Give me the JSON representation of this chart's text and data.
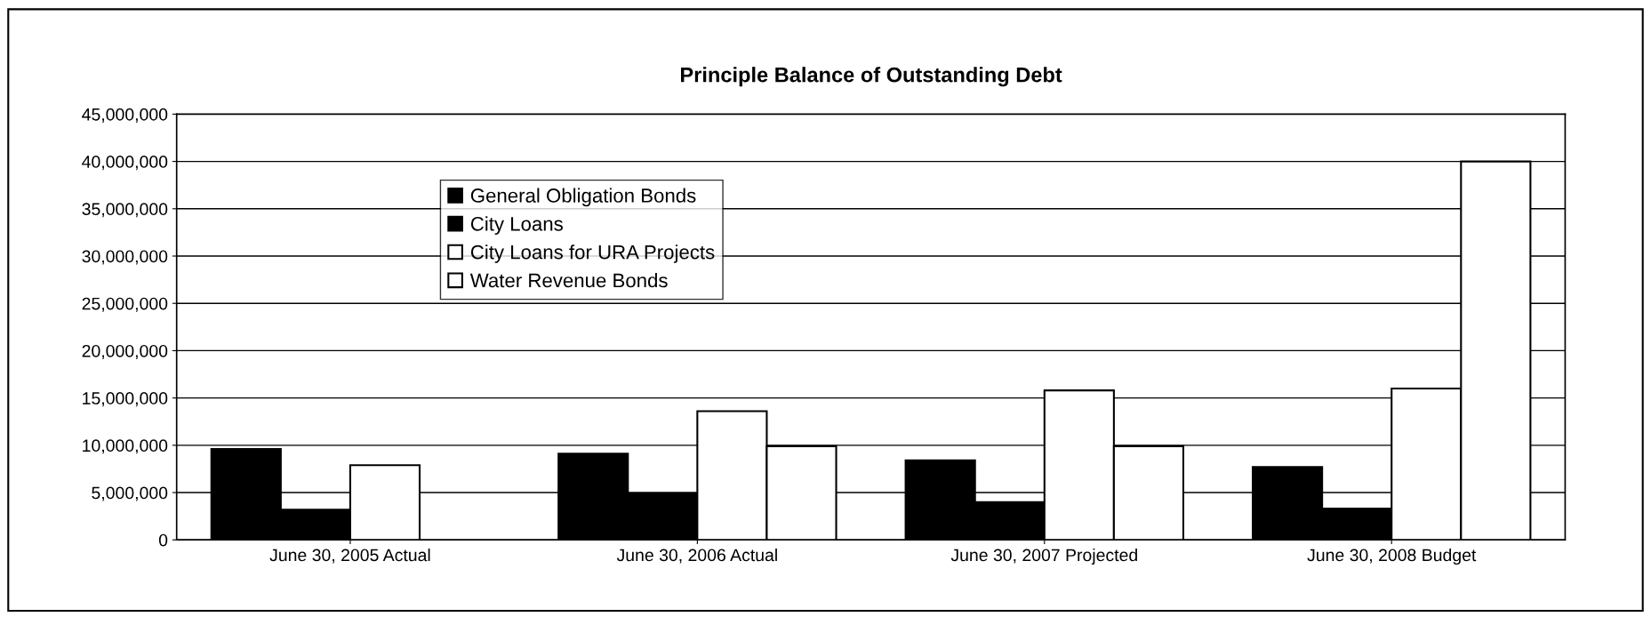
{
  "chart_data": {
    "type": "bar",
    "title": "Principle Balance of Outstanding Debt",
    "categories": [
      "June 30, 2005 Actual",
      "June 30, 2006 Actual",
      "June 30, 2007 Projected",
      "June 30, 2008 Budget"
    ],
    "series": [
      {
        "name": "General Obligation Bonds",
        "color": "#000000",
        "values": [
          9600000,
          9100000,
          8400000,
          7700000
        ]
      },
      {
        "name": "City Loans",
        "color": "#000000",
        "values": [
          3200000,
          4900000,
          4000000,
          3300000
        ]
      },
      {
        "name": "City Loans for URA Projects",
        "color": "#ffffff",
        "values": [
          7900000,
          13600000,
          15800000,
          16000000
        ]
      },
      {
        "name": "Water Revenue Bonds",
        "color": "#ffffff",
        "values": [
          null,
          9900000,
          9900000,
          40000000
        ]
      }
    ],
    "ylim": [
      0,
      45000000
    ],
    "yticks": [
      {
        "value": 0,
        "label": "0"
      },
      {
        "value": 5000000,
        "label": "5,000,000"
      },
      {
        "value": 10000000,
        "label": "10,000,000"
      },
      {
        "value": 15000000,
        "label": "15,000,000"
      },
      {
        "value": 20000000,
        "label": "20,000,000"
      },
      {
        "value": 25000000,
        "label": "25,000,000"
      },
      {
        "value": 30000000,
        "label": "30,000,000"
      },
      {
        "value": 35000000,
        "label": "35,000,000"
      },
      {
        "value": 40000000,
        "label": "40,000,000"
      },
      {
        "value": 45000000,
        "label": "45,000,000"
      }
    ],
    "grid": "y",
    "legend": "top left"
  }
}
